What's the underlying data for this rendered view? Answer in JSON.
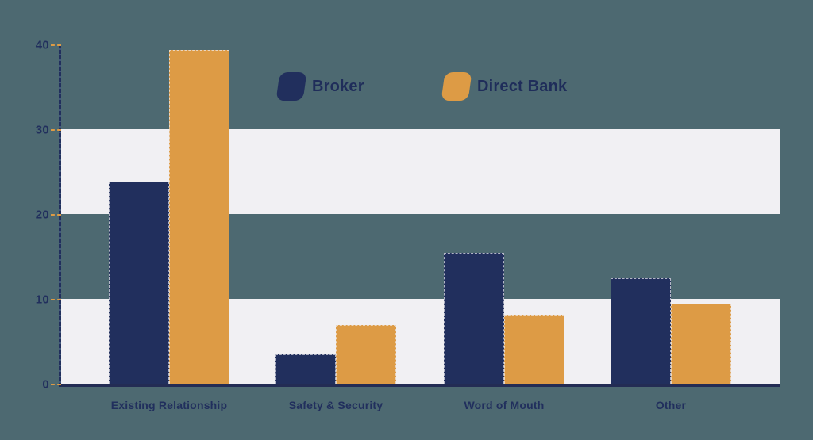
{
  "chart_data": {
    "type": "bar",
    "title": "",
    "xlabel": "",
    "ylabel": "",
    "categories": [
      "Existing Relationship",
      "Safety & Security",
      "Word of Mouth",
      "Other"
    ],
    "series": [
      {
        "name": "Broker",
        "color": "#212f5d",
        "values": [
          23.8,
          3.5,
          15.4,
          12.4
        ]
      },
      {
        "name": "Direct Bank",
        "color": "#dd9b45",
        "values": [
          39.3,
          6.9,
          8.1,
          9.4
        ]
      }
    ],
    "y_ticks": [
      0,
      10,
      20,
      30,
      40
    ],
    "ylim": [
      0,
      40
    ],
    "grid": "alternating-horizontal-bands",
    "legend_position": "top-center"
  },
  "colors": {
    "background": "#4d6971",
    "band": "#f1f0f3",
    "axis": "#212f5d",
    "tick_dash": "#dd9b45",
    "label_text": "#212f5d"
  }
}
